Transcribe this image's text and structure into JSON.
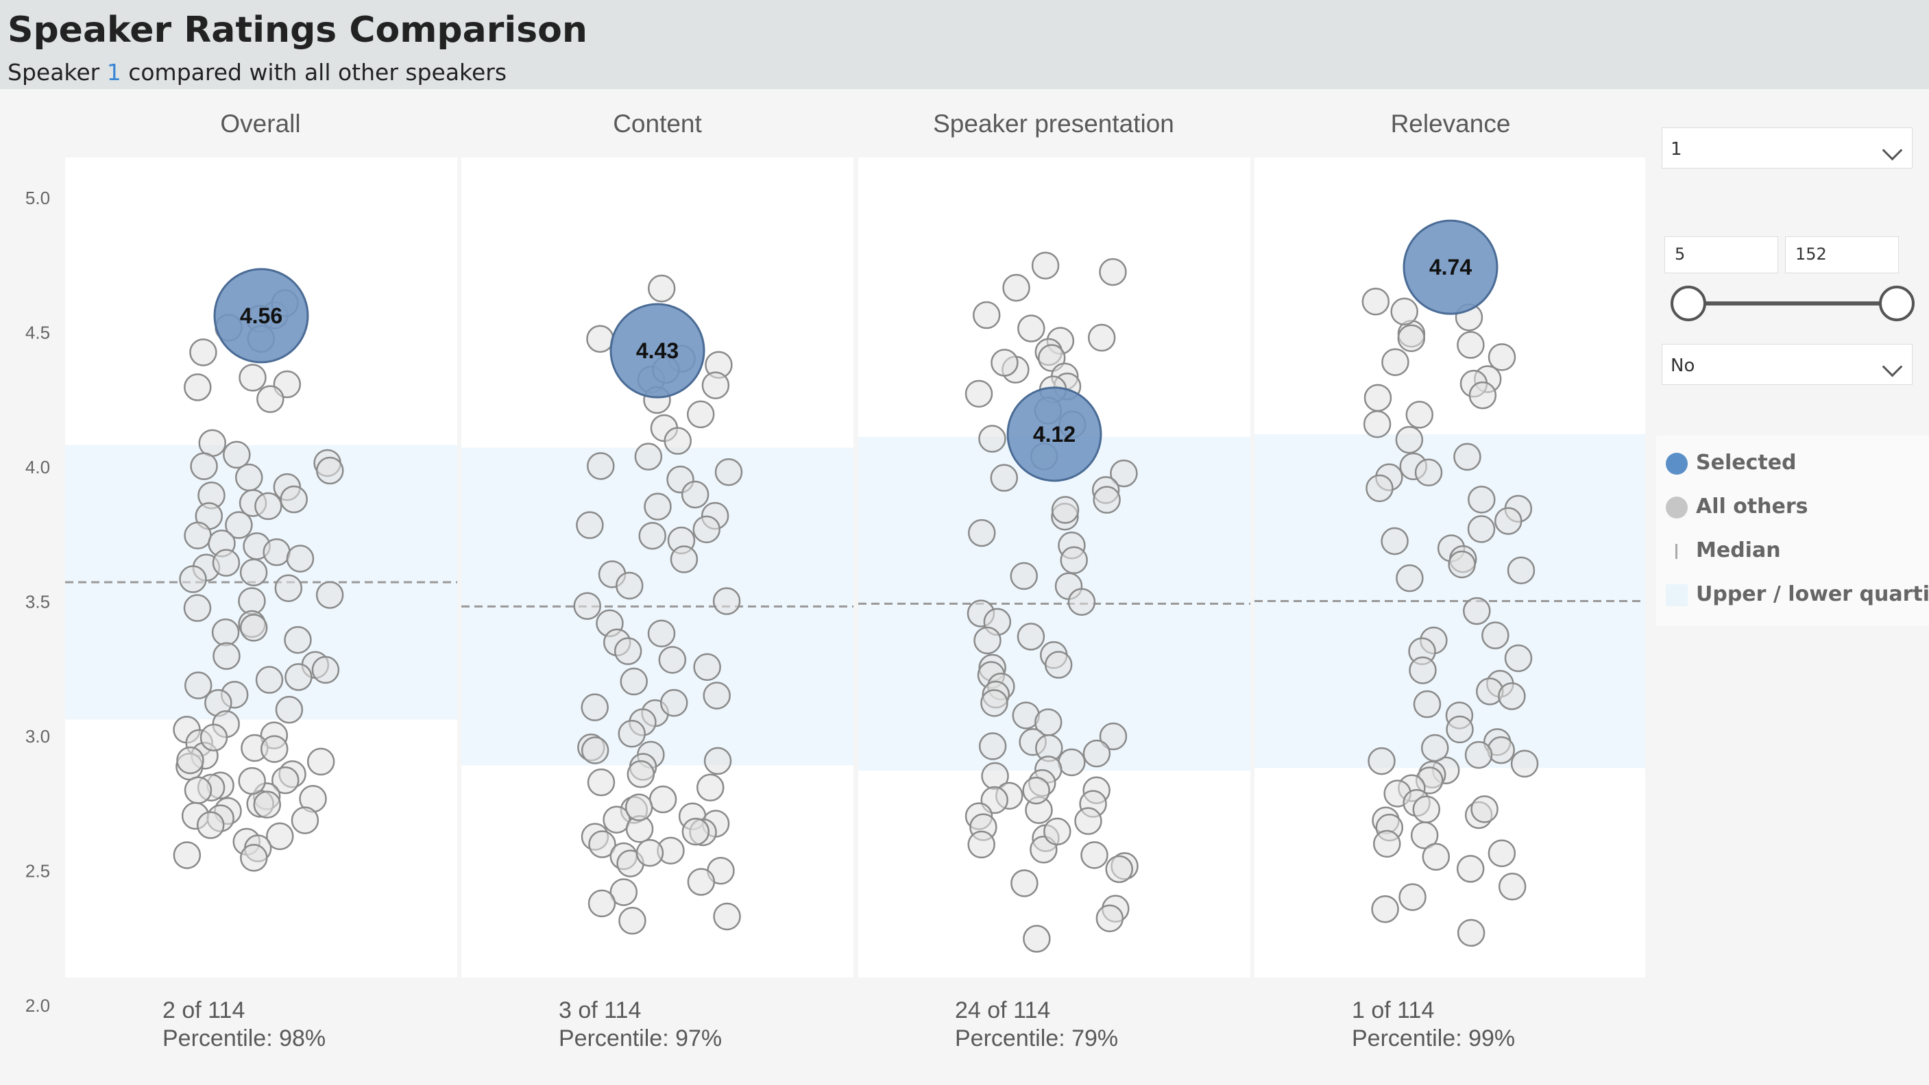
{
  "header": {
    "title": "Speaker Ratings Comparison",
    "subtitle_prefix": "Speaker ",
    "subtitle_highlight": "1",
    "subtitle_suffix": " compared with all other speakers"
  },
  "filters": {
    "speaker_dropdown": {
      "selected": "1"
    },
    "range": {
      "min": "5",
      "max": "152"
    },
    "toggle_dropdown": {
      "selected": "No"
    }
  },
  "legend": [
    {
      "label": "Selected",
      "color": "#5b8fc7"
    },
    {
      "label": "All others",
      "color": "#c6c6c6"
    },
    {
      "label": "Median",
      "color": "#aaaaaa"
    },
    {
      "label": "Upper / lower quartile",
      "color": "#e9f4fb"
    }
  ],
  "colors": {
    "selected": "#6f94c0",
    "selected_stroke": "#4a6b95",
    "others_fill": "#e2e2e2",
    "others_stroke": "#8a8a8a",
    "iqr": "#eef7fd",
    "median": "#999999"
  },
  "chart_data": {
    "type": "scatter",
    "y_ticks": [
      "5.0",
      "4.5",
      "4.0",
      "3.5",
      "3.0",
      "2.5",
      "2.0"
    ],
    "ylim": [
      2.0,
      5.0
    ],
    "panels": [
      {
        "title": "Overall",
        "selected_value": 4.56,
        "selected_label": "4.56",
        "median": 3.57,
        "quartiles": [
          3.06,
          4.08
        ],
        "rank": "2 of 114",
        "percentile": "Percentile: 98%",
        "others": [
          4.55,
          4.42,
          4.33,
          4.3,
          4.56,
          4.52,
          4.6,
          4.47,
          4.3,
          4.25,
          4.08,
          4.02,
          4.0,
          3.98,
          3.96,
          3.92,
          3.9,
          3.86,
          3.85,
          3.82,
          3.78,
          3.75,
          3.72,
          3.7,
          3.68,
          3.66,
          3.62,
          3.6,
          3.58,
          3.55,
          3.52,
          3.5,
          3.42,
          3.4,
          3.38,
          3.35,
          3.3,
          3.27,
          3.25,
          3.22,
          3.2,
          3.15,
          3.12,
          3.1,
          3.05,
          3.02,
          3.0,
          2.98,
          2.96,
          2.95,
          2.93,
          2.9,
          2.88,
          2.86,
          2.84,
          2.82,
          2.8,
          2.79,
          2.78,
          2.76,
          2.74,
          2.72,
          2.7,
          2.69,
          2.68,
          2.66,
          2.62,
          2.6,
          2.58,
          2.56,
          2.55,
          4.05,
          3.88,
          3.64,
          3.48,
          3.18,
          2.99,
          2.91,
          2.83,
          2.75
        ]
      },
      {
        "title": "Content",
        "selected_value": 4.43,
        "selected_label": "4.43",
        "median": 3.48,
        "quartiles": [
          2.89,
          4.07
        ],
        "rank": "3 of 114",
        "percentile": "Percentile: 97%",
        "others": [
          4.66,
          4.48,
          4.4,
          4.38,
          4.33,
          4.3,
          4.25,
          4.2,
          4.15,
          4.1,
          4.03,
          3.98,
          3.95,
          3.9,
          3.85,
          3.82,
          3.78,
          3.75,
          3.72,
          3.65,
          3.6,
          3.55,
          3.5,
          3.48,
          3.42,
          3.35,
          3.32,
          3.28,
          3.25,
          3.2,
          3.15,
          3.1,
          3.08,
          3.05,
          3.0,
          2.96,
          2.93,
          2.9,
          2.88,
          2.85,
          2.83,
          2.8,
          2.76,
          2.72,
          2.7,
          2.69,
          2.68,
          2.66,
          2.64,
          2.62,
          2.6,
          2.58,
          2.55,
          2.52,
          2.5,
          2.46,
          2.42,
          2.38,
          2.33,
          2.31,
          4.36,
          4.0,
          3.77,
          3.38,
          3.12,
          2.94,
          2.74,
          2.65,
          2.57
        ]
      },
      {
        "title": "Speaker presentation",
        "selected_value": 4.12,
        "selected_label": "4.12",
        "median": 3.49,
        "quartiles": [
          2.87,
          4.11
        ],
        "rank": "24 of 114",
        "percentile": "Percentile: 79%",
        "others": [
          4.74,
          4.72,
          4.66,
          4.56,
          4.52,
          4.48,
          4.46,
          4.42,
          4.4,
          4.36,
          4.33,
          4.3,
          4.28,
          4.27,
          4.2,
          4.15,
          4.1,
          4.04,
          3.98,
          3.95,
          3.92,
          3.88,
          3.82,
          3.75,
          3.7,
          3.65,
          3.6,
          3.55,
          3.5,
          3.45,
          3.42,
          3.35,
          3.3,
          3.27,
          3.25,
          3.22,
          3.18,
          3.15,
          3.12,
          3.08,
          3.05,
          3.0,
          2.98,
          2.95,
          2.93,
          2.9,
          2.88,
          2.85,
          2.82,
          2.8,
          2.78,
          2.76,
          2.74,
          2.72,
          2.7,
          2.68,
          2.66,
          2.62,
          2.6,
          2.58,
          2.55,
          2.52,
          2.5,
          2.45,
          2.36,
          2.32,
          2.25,
          4.39,
          3.84,
          3.37,
          2.96,
          2.79,
          2.64
        ]
      },
      {
        "title": "Relevance",
        "selected_value": 4.74,
        "selected_label": "4.74",
        "median": 3.5,
        "quartiles": [
          2.88,
          4.12
        ],
        "rank": "1 of 114",
        "percentile": "Percentile: 99%",
        "others": [
          4.62,
          4.55,
          4.5,
          4.48,
          4.45,
          4.4,
          4.38,
          4.33,
          4.3,
          4.25,
          4.2,
          4.15,
          4.1,
          4.03,
          4.0,
          3.96,
          3.92,
          3.88,
          3.84,
          3.8,
          3.76,
          3.72,
          3.7,
          3.66,
          3.62,
          3.58,
          3.46,
          3.37,
          3.35,
          3.32,
          3.28,
          3.24,
          3.2,
          3.16,
          3.12,
          3.08,
          3.02,
          2.98,
          2.95,
          2.93,
          2.91,
          2.89,
          2.87,
          2.85,
          2.83,
          2.8,
          2.78,
          2.75,
          2.72,
          2.7,
          2.68,
          2.66,
          2.63,
          2.6,
          2.57,
          2.55,
          2.5,
          2.44,
          2.4,
          2.35,
          2.27,
          4.58,
          4.27,
          3.98,
          3.64,
          3.15,
          2.96,
          2.73
        ]
      }
    ]
  }
}
